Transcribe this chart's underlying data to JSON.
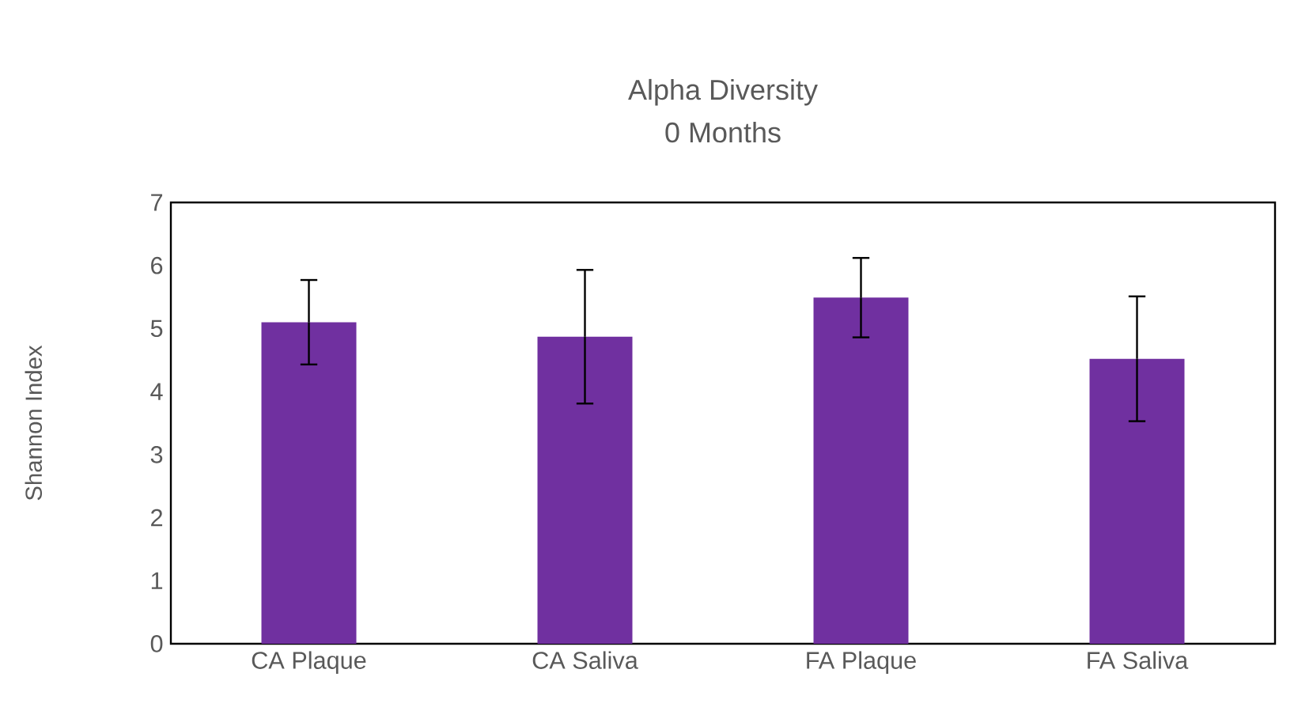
{
  "chart_data": {
    "type": "bar",
    "title": "Alpha Diversity",
    "subtitle": "0 Months",
    "ylabel": "Shannon Index",
    "categories": [
      "CA Plaque",
      "CA Saliva",
      "FA Plaque",
      "FA Saliva"
    ],
    "values": [
      5.1,
      4.87,
      5.49,
      4.52
    ],
    "errors": [
      0.67,
      1.06,
      0.63,
      0.99
    ],
    "color": "#7030a0",
    "ylim": [
      0,
      7
    ],
    "yticks": [
      0,
      1,
      2,
      3,
      4,
      5,
      6,
      7
    ],
    "grid": false
  }
}
